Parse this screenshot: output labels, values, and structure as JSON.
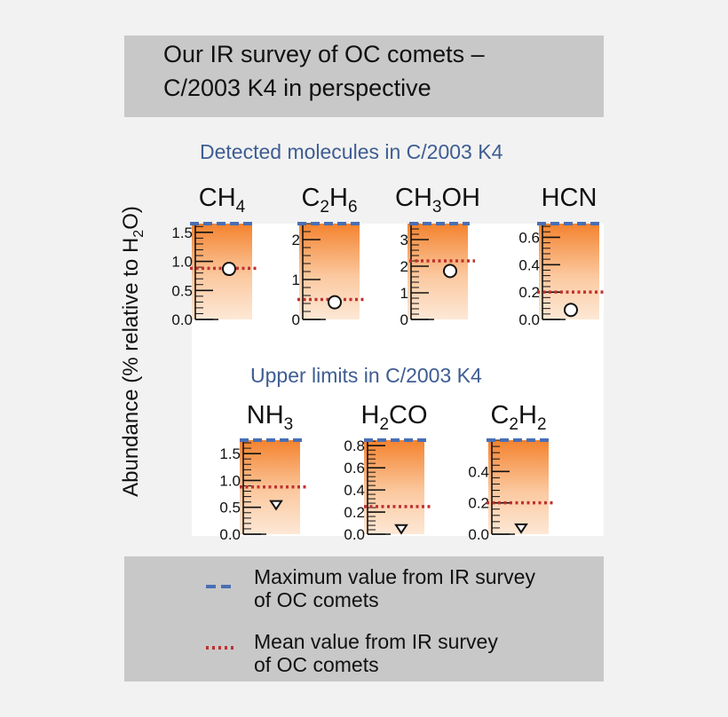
{
  "title": {
    "line1": "Our IR survey of OC comets –",
    "line2": "C/2003 K4 in perspective"
  },
  "ylabel": {
    "pre": "Abundance (% relative to H",
    "sub": "2",
    "post": "O)"
  },
  "sections": {
    "detected": "Detected molecules in C/2003 K4",
    "upper": "Upper limits in C/2003 K4"
  },
  "legend": {
    "max_line1": "Maximum value from IR survey",
    "max_line2": " of OC comets",
    "mean_line1": "Mean value from IR survey",
    "mean_line2": " of OC comets"
  },
  "colors": {
    "max": "#4a6fb5",
    "mean": "#c0302e",
    "gradient_top": "#f4822e",
    "gradient_bottom": "#fde8d6"
  },
  "chart_data": [
    {
      "type": "scatter",
      "molecule": "CH4",
      "label": [
        {
          "t": "CH"
        },
        {
          "t": "4",
          "sub": true
        }
      ],
      "section": "detected",
      "ylim": [
        0,
        1.65
      ],
      "ticks": [
        "0.0",
        "0.5",
        "1.0",
        "1.5"
      ],
      "tick_values": [
        0,
        0.5,
        1.0,
        1.5
      ],
      "value": 0.87,
      "error": [
        0.78,
        0.96
      ],
      "marker": "circle",
      "mean": 0.88,
      "max": 1.65
    },
    {
      "type": "scatter",
      "molecule": "C2H6",
      "label": [
        {
          "t": "C"
        },
        {
          "t": "2",
          "sub": true
        },
        {
          "t": "H"
        },
        {
          "t": "6",
          "sub": true
        }
      ],
      "section": "detected",
      "ylim": [
        0,
        2.4
      ],
      "ticks": [
        "0",
        "1",
        "2"
      ],
      "tick_values": [
        0,
        1,
        2
      ],
      "value": 0.43,
      "marker": "circle",
      "mean": 0.5,
      "max": 2.4
    },
    {
      "type": "scatter",
      "molecule": "CH3OH",
      "label": [
        {
          "t": "CH"
        },
        {
          "t": "3",
          "sub": true
        },
        {
          "t": "OH"
        }
      ],
      "section": "detected",
      "ylim": [
        0,
        3.6
      ],
      "ticks": [
        "0",
        "1",
        "2",
        "3"
      ],
      "tick_values": [
        0,
        1,
        2,
        3
      ],
      "value": 1.82,
      "marker": "circle",
      "mean": 2.2,
      "max": 3.6
    },
    {
      "type": "scatter",
      "molecule": "HCN",
      "label": [
        {
          "t": "HCN"
        }
      ],
      "section": "detected",
      "ylim": [
        0,
        0.7
      ],
      "ticks": [
        "0.0",
        "0.2",
        "0.4",
        "0.6"
      ],
      "tick_values": [
        0,
        0.2,
        0.4,
        0.6
      ],
      "value": 0.07,
      "marker": "circle",
      "mean": 0.2,
      "max": 0.7
    },
    {
      "type": "scatter",
      "molecule": "NH3",
      "label": [
        {
          "t": "NH"
        },
        {
          "t": "3",
          "sub": true
        }
      ],
      "section": "upper",
      "ylim": [
        0,
        1.75
      ],
      "ticks": [
        "0.0",
        "0.5",
        "1.0",
        "1.5"
      ],
      "tick_values": [
        0,
        0.5,
        1.0,
        1.5
      ],
      "value": 0.55,
      "marker": "triangle",
      "mean": 0.88,
      "max": 1.75
    },
    {
      "type": "scatter",
      "molecule": "H2CO",
      "label": [
        {
          "t": "H"
        },
        {
          "t": "2",
          "sub": true
        },
        {
          "t": "CO"
        }
      ],
      "section": "upper",
      "ylim": [
        0,
        0.85
      ],
      "ticks": [
        "0.0",
        "0.2",
        "0.4",
        "0.6",
        "0.8"
      ],
      "tick_values": [
        0,
        0.2,
        0.4,
        0.6,
        0.8
      ],
      "value": 0.05,
      "marker": "triangle",
      "mean": 0.25,
      "max": 0.85
    },
    {
      "type": "scatter",
      "molecule": "C2H2",
      "label": [
        {
          "t": "C"
        },
        {
          "t": "2",
          "sub": true
        },
        {
          "t": "H"
        },
        {
          "t": "2",
          "sub": true
        }
      ],
      "section": "upper",
      "ylim": [
        0,
        0.6
      ],
      "ticks": [
        "0.0",
        "0.2",
        "0.4"
      ],
      "tick_values": [
        0,
        0.2,
        0.4
      ],
      "value": 0.04,
      "marker": "triangle",
      "mean": 0.2,
      "max": 0.6
    }
  ]
}
